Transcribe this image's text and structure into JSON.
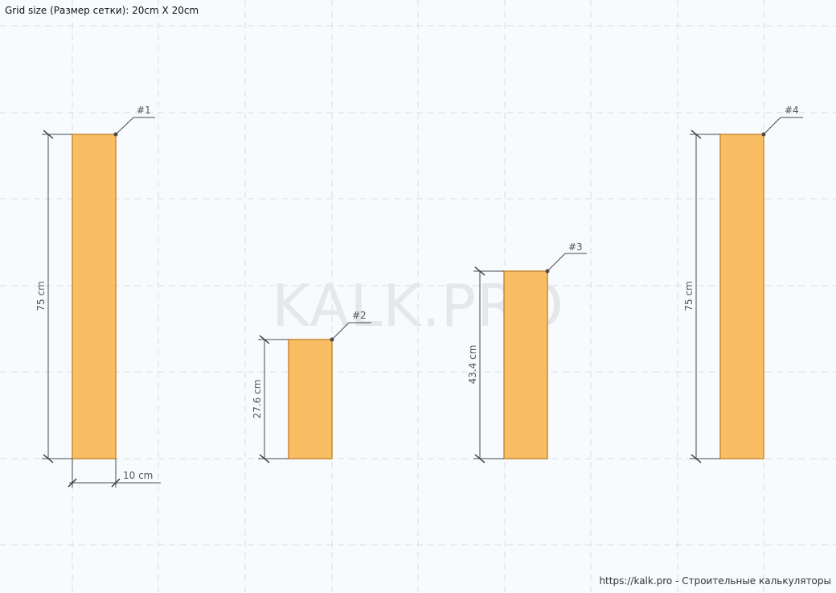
{
  "header": {
    "grid_size_text": "Grid size (Размер сетки): 20cm X 20cm"
  },
  "watermark": "KALK.PRO",
  "footer": {
    "credit": "https://kalk.pro - Строительные калькуляторы"
  },
  "colors": {
    "board_fill": "#f9be64",
    "board_stroke": "#c88a35",
    "grid": "#d5dde3"
  },
  "boards": [
    {
      "id": "#1",
      "height_label": "75 cm"
    },
    {
      "id": "#2",
      "height_label": "27.6 cm"
    },
    {
      "id": "#3",
      "height_label": "43.4 cm"
    },
    {
      "id": "#4",
      "height_label": "75 cm"
    }
  ],
  "width_label": "10 cm"
}
